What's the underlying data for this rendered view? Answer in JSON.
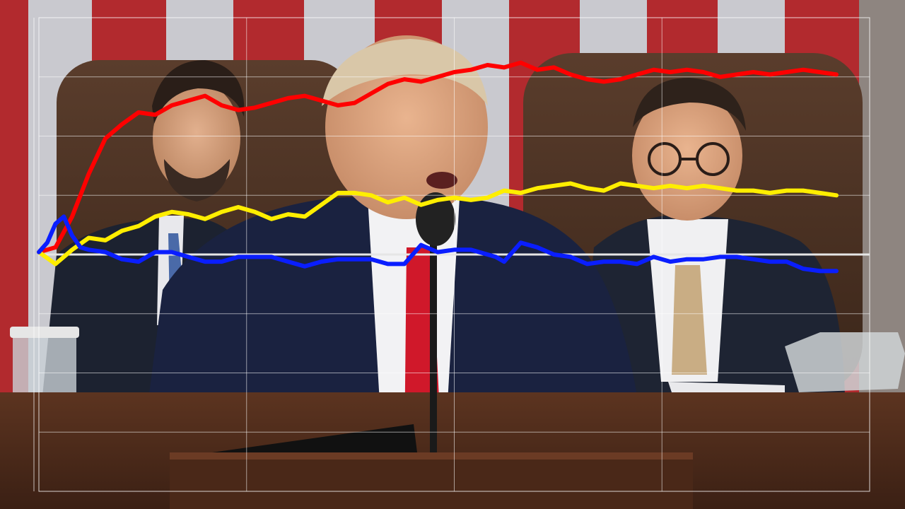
{
  "scene": {
    "description_icon": "video-frame-icon"
  },
  "colors": {
    "red_series": "#ff0000",
    "yellow_series": "#ffee00",
    "blue_series": "#0a1eff",
    "grid": "#ffffff",
    "baseline": "#e6e6e6"
  },
  "chart_data": {
    "type": "line",
    "title": "",
    "xlabel": "",
    "ylabel": "",
    "grid": true,
    "legend": "none",
    "xlim": [
      0,
      100
    ],
    "ylim": [
      -100,
      100
    ],
    "baseline": 0,
    "series": [
      {
        "color": "#ff0000",
        "x": [
          0,
          2,
          4,
          6,
          8,
          10,
          12,
          14,
          16,
          18,
          20,
          22,
          24,
          26,
          28,
          30,
          32,
          34,
          36,
          38,
          40,
          42,
          44,
          46,
          48,
          50,
          52,
          54,
          56,
          58,
          60,
          62,
          64,
          66,
          68,
          70,
          72,
          74,
          76,
          78,
          80,
          82,
          84,
          86,
          88,
          90,
          92,
          94,
          96
        ],
        "values": [
          1,
          3,
          16,
          34,
          49,
          55,
          60,
          59,
          63,
          65,
          67,
          63,
          61,
          62,
          64,
          66,
          67,
          65,
          63,
          64,
          68,
          72,
          74,
          73,
          75,
          77,
          78,
          80,
          79,
          81,
          78,
          79,
          76,
          74,
          73,
          74,
          76,
          78,
          77,
          78,
          77,
          75,
          76,
          77,
          76,
          77,
          78,
          77,
          76
        ]
      },
      {
        "color": "#ffee00",
        "x": [
          0,
          2,
          4,
          6,
          8,
          10,
          12,
          14,
          16,
          18,
          20,
          22,
          24,
          26,
          28,
          30,
          32,
          34,
          36,
          38,
          40,
          42,
          44,
          46,
          48,
          50,
          52,
          54,
          56,
          58,
          60,
          62,
          64,
          66,
          68,
          70,
          72,
          74,
          76,
          78,
          80,
          82,
          84,
          86,
          88,
          90,
          92,
          94,
          96
        ],
        "values": [
          1,
          -4,
          2,
          7,
          6,
          10,
          12,
          16,
          18,
          17,
          15,
          18,
          20,
          18,
          15,
          17,
          16,
          21,
          26,
          26,
          25,
          22,
          24,
          21,
          23,
          24,
          23,
          24,
          27,
          26,
          28,
          29,
          30,
          28,
          27,
          30,
          29,
          28,
          29,
          28,
          29,
          28,
          27,
          27,
          26,
          27,
          27,
          26,
          25
        ]
      },
      {
        "color": "#0a1eff",
        "x": [
          0,
          1,
          2,
          3,
          4,
          5,
          6,
          8,
          10,
          12,
          14,
          16,
          18,
          20,
          22,
          24,
          26,
          28,
          30,
          32,
          34,
          36,
          38,
          40,
          42,
          43,
          44,
          46,
          48,
          50,
          52,
          54,
          55,
          56,
          58,
          60,
          62,
          64,
          66,
          68,
          70,
          72,
          74,
          76,
          78,
          80,
          82,
          84,
          86,
          88,
          90,
          92,
          94,
          96
        ],
        "values": [
          1,
          5,
          13,
          16,
          8,
          3,
          2,
          1,
          -2,
          -3,
          1,
          1,
          -1,
          -3,
          -3,
          -1,
          -1,
          -1,
          -3,
          -5,
          -3,
          -2,
          -2,
          -2,
          -4,
          -4,
          -4,
          4,
          1,
          2,
          2,
          0,
          -1,
          -3,
          5,
          3,
          0,
          -1,
          -4,
          -3,
          -3,
          -4,
          -1,
          -3,
          -2,
          -2,
          -1,
          -1,
          -2,
          -3,
          -3,
          -6,
          -7,
          -7
        ]
      }
    ]
  }
}
